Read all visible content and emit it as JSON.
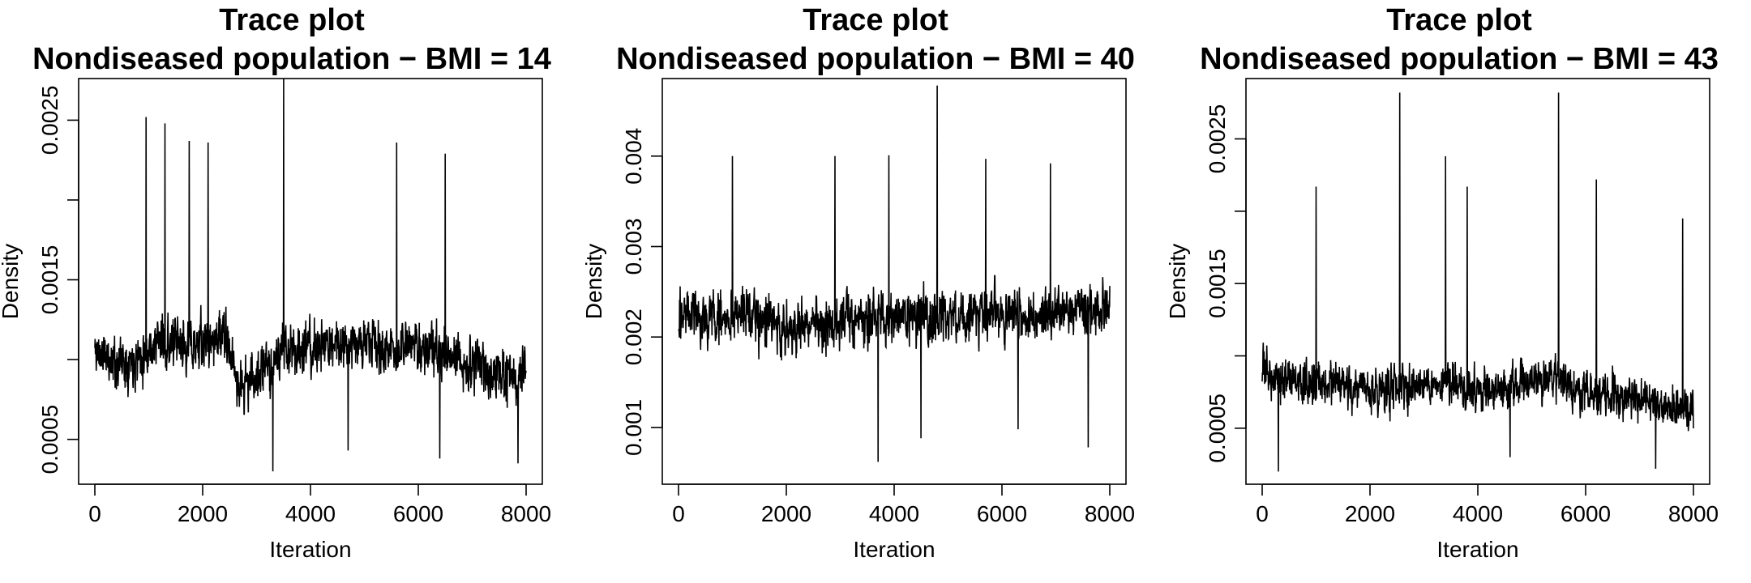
{
  "chart_data": [
    {
      "type": "line",
      "title": "Trace plot",
      "subtitle": "Nondiseased population − BMI = 14",
      "xlabel": "Iteration",
      "ylabel": "Density",
      "xlim": [
        0,
        8000
      ],
      "ylim": [
        0.00028,
        0.0027
      ],
      "xticks": [
        0,
        2000,
        4000,
        6000,
        8000
      ],
      "xtick_labels": [
        "0",
        "2000",
        "4000",
        "6000",
        "8000"
      ],
      "yticks": [
        0.0005,
        0.001,
        0.0015,
        0.002,
        0.0025
      ],
      "ytick_labels": [
        "0.0005",
        "",
        "0.0015",
        "",
        "0.0025"
      ],
      "grid": false,
      "series": [
        {
          "x": [
            0,
            400,
            800,
            1200,
            1600,
            2000,
            2400,
            2700,
            2800,
            3200,
            3600,
            4000,
            4400,
            4800,
            5200,
            5600,
            6000,
            6400,
            6800,
            7200,
            7600,
            8000
          ],
          "y": [
            0.00105,
            0.00098,
            0.00102,
            0.00112,
            0.00108,
            0.0011,
            0.00115,
            0.00082,
            0.00085,
            0.00095,
            0.00108,
            0.00105,
            0.0011,
            0.00112,
            0.00108,
            0.00105,
            0.0011,
            0.00102,
            0.00098,
            0.00095,
            0.00088,
            0.0009
          ],
          "noise": 0.00025,
          "spikes": [
            {
              "x": 950,
              "y": 0.00252
            },
            {
              "x": 1300,
              "y": 0.00248
            },
            {
              "x": 1750,
              "y": 0.00237
            },
            {
              "x": 2100,
              "y": 0.00236
            },
            {
              "x": 3500,
              "y": 0.00276
            },
            {
              "x": 5600,
              "y": 0.00236
            },
            {
              "x": 6500,
              "y": 0.00229
            },
            {
              "x": 3300,
              "y": 0.0003
            },
            {
              "x": 7850,
              "y": 0.00035
            },
            {
              "x": 6400,
              "y": 0.00038
            },
            {
              "x": 4700,
              "y": 0.00043
            }
          ]
        }
      ]
    },
    {
      "type": "line",
      "title": "Trace plot",
      "subtitle": "Nondiseased population − BMI = 40",
      "xlabel": "Iteration",
      "ylabel": "Density",
      "xlim": [
        0,
        8000
      ],
      "ylim": [
        0.00048,
        0.00475
      ],
      "xticks": [
        0,
        2000,
        4000,
        6000,
        8000
      ],
      "xtick_labels": [
        "0",
        "2000",
        "4000",
        "6000",
        "8000"
      ],
      "yticks": [
        0.001,
        0.002,
        0.003,
        0.004
      ],
      "ytick_labels": [
        "0.001",
        "0.002",
        "0.003",
        "0.004"
      ],
      "grid": false,
      "series": [
        {
          "x": [
            0,
            400,
            800,
            1200,
            1600,
            2000,
            2400,
            2800,
            3200,
            3600,
            4000,
            4400,
            4800,
            5200,
            5600,
            6000,
            6400,
            6800,
            7200,
            7600,
            8000
          ],
          "y": [
            0.0023,
            0.0022,
            0.00222,
            0.00225,
            0.00215,
            0.0021,
            0.00212,
            0.00215,
            0.0022,
            0.00218,
            0.0022,
            0.00225,
            0.00222,
            0.0022,
            0.00228,
            0.00225,
            0.00218,
            0.00225,
            0.0023,
            0.00228,
            0.00232
          ],
          "noise": 0.00045,
          "spikes": [
            {
              "x": 4800,
              "y": 0.00478
            },
            {
              "x": 1000,
              "y": 0.004
            },
            {
              "x": 2900,
              "y": 0.004
            },
            {
              "x": 3900,
              "y": 0.00401
            },
            {
              "x": 5700,
              "y": 0.00397
            },
            {
              "x": 6900,
              "y": 0.00392
            },
            {
              "x": 3700,
              "y": 0.00062
            },
            {
              "x": 7600,
              "y": 0.00078
            },
            {
              "x": 6300,
              "y": 0.00098
            },
            {
              "x": 4500,
              "y": 0.00088
            }
          ]
        }
      ]
    },
    {
      "type": "line",
      "title": "Trace plot",
      "subtitle": "Nondiseased population − BMI = 43",
      "xlabel": "Iteration",
      "ylabel": "Density",
      "xlim": [
        0,
        8000
      ],
      "ylim": [
        0.00018,
        0.00285
      ],
      "xticks": [
        0,
        2000,
        4000,
        6000,
        8000
      ],
      "xtick_labels": [
        "0",
        "2000",
        "4000",
        "6000",
        "8000"
      ],
      "yticks": [
        0.0005,
        0.001,
        0.0015,
        0.002,
        0.0025
      ],
      "ytick_labels": [
        "0.0005",
        "",
        "0.0015",
        "",
        "0.0025"
      ],
      "grid": false,
      "series": [
        {
          "x": [
            0,
            400,
            800,
            1200,
            1600,
            2000,
            2400,
            2800,
            3200,
            3600,
            4000,
            4400,
            4800,
            5200,
            5600,
            6000,
            6400,
            6800,
            7200,
            7600,
            8000
          ],
          "y": [
            0.0009,
            0.00085,
            0.0008,
            0.00082,
            0.00078,
            0.00075,
            0.00078,
            0.0008,
            0.00082,
            0.0008,
            0.00075,
            0.00078,
            0.0008,
            0.00082,
            0.00078,
            0.00075,
            0.00072,
            0.0007,
            0.00068,
            0.00065,
            0.00065
          ],
          "noise": 0.00023,
          "spikes": [
            {
              "x": 2550,
              "y": 0.00282
            },
            {
              "x": 5500,
              "y": 0.00282
            },
            {
              "x": 3400,
              "y": 0.00238
            },
            {
              "x": 6200,
              "y": 0.00222
            },
            {
              "x": 1000,
              "y": 0.00217
            },
            {
              "x": 3800,
              "y": 0.00217
            },
            {
              "x": 7800,
              "y": 0.00195
            },
            {
              "x": 300,
              "y": 0.0002
            },
            {
              "x": 7300,
              "y": 0.00022
            },
            {
              "x": 4600,
              "y": 0.0003
            }
          ]
        }
      ]
    }
  ]
}
